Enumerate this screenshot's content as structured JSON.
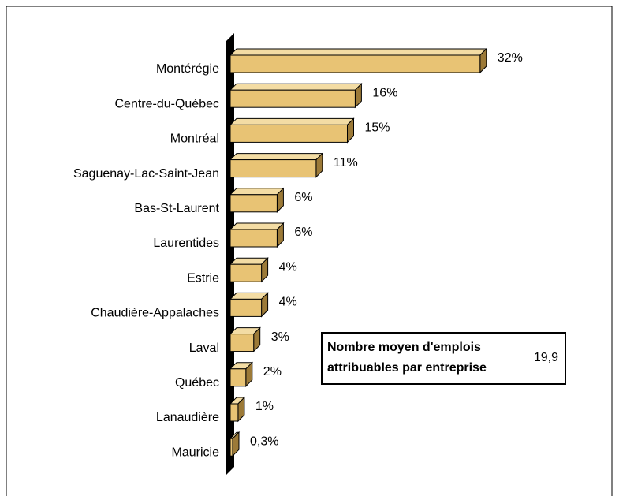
{
  "chart_data": {
    "type": "bar3d_horizontal",
    "categories": [
      "Montérégie",
      "Centre-du-Québec",
      "Montréal",
      "Saguenay-Lac-Saint-Jean",
      "Bas-St-Laurent",
      "Laurentides",
      "Estrie",
      "Chaudière-Appalaches",
      "Laval",
      "Québec",
      "Lanaudière",
      "Mauricie"
    ],
    "values": [
      32,
      16,
      15,
      11,
      6,
      6,
      4,
      4,
      3,
      2,
      1,
      0.3
    ],
    "value_labels": [
      "32%",
      "16%",
      "15%",
      "11%",
      "6%",
      "6%",
      "4%",
      "4%",
      "3%",
      "2%",
      "1%",
      "0,3%"
    ],
    "color": "#e8c374",
    "annotation": {
      "lines": [
        "Nombre moyen d'emplois",
        "attribuables par entreprise"
      ],
      "value": "19,9"
    }
  }
}
